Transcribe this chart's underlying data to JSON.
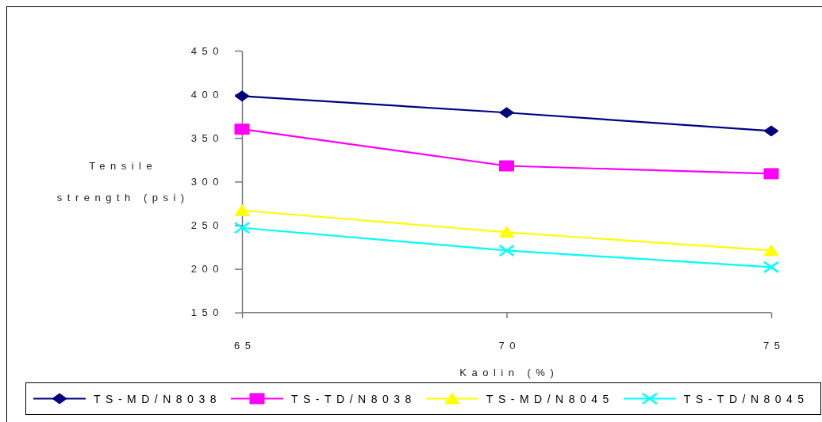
{
  "chart_data": {
    "type": "line",
    "xlabel": "Kaolin (%)",
    "ylabel": "Tensile strength (psi)",
    "categories": [
      "65",
      "70",
      "75"
    ],
    "ylim": [
      150,
      450
    ],
    "yticks": [
      150,
      200,
      250,
      300,
      350,
      400,
      450
    ],
    "legend": "bottom",
    "series": [
      {
        "name": "TS-MD/N8038",
        "color": "#000080",
        "marker": "diamond",
        "values": [
          398,
          379,
          358
        ]
      },
      {
        "name": "TS-TD/N8038",
        "color": "#ff00ff",
        "marker": "square",
        "values": [
          360,
          318,
          309
        ]
      },
      {
        "name": "TS-MD/N8045",
        "color": "#ffff00",
        "marker": "triangle",
        "values": [
          267,
          242,
          221
        ]
      },
      {
        "name": "TS-TD/N8045",
        "color": "#00ffff",
        "marker": "cross",
        "values": [
          247,
          221,
          202
        ]
      }
    ]
  }
}
